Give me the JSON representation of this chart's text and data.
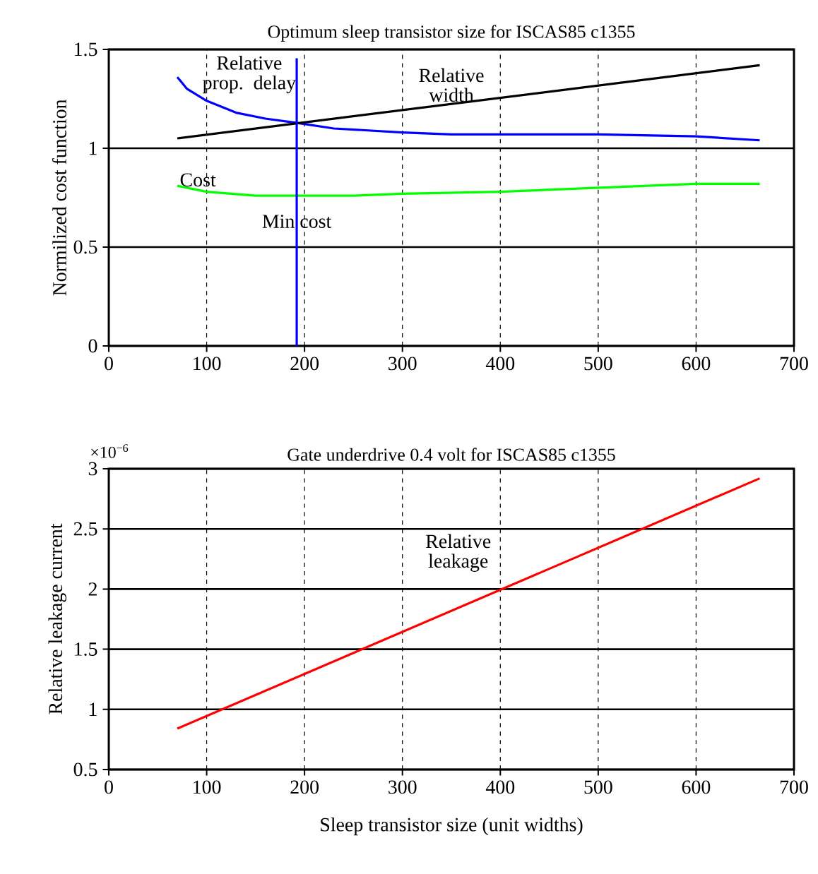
{
  "chart_data": [
    {
      "type": "line",
      "title": "Optimum sleep transistor size for ISCAS85 c1355",
      "ylabel": "Normilized cost function",
      "series": [
        {
          "name": "Relative prop. delay",
          "color": "#0000ff",
          "x": [
            70,
            80,
            100,
            130,
            160,
            190,
            230,
            300,
            350,
            400,
            500,
            600,
            665
          ],
          "values": [
            1.36,
            1.3,
            1.24,
            1.18,
            1.15,
            1.13,
            1.1,
            1.08,
            1.07,
            1.07,
            1.07,
            1.06,
            1.04
          ]
        },
        {
          "name": "Relative width",
          "color": "#000000",
          "x": [
            70,
            665
          ],
          "values": [
            1.05,
            1.42
          ]
        },
        {
          "name": "Cost",
          "color": "#00ff00",
          "x": [
            70,
            100,
            150,
            190,
            250,
            300,
            400,
            500,
            600,
            665
          ],
          "values": [
            0.81,
            0.78,
            0.76,
            0.76,
            0.76,
            0.77,
            0.78,
            0.8,
            0.82,
            0.82
          ]
        }
      ],
      "ref_lines": [
        {
          "axis": "x",
          "value": 192,
          "label": "Min cost",
          "color": "#0000ff"
        }
      ],
      "xlim": [
        0,
        700
      ],
      "xticks": [
        0,
        100,
        200,
        300,
        400,
        500,
        600,
        700
      ],
      "ylim": [
        0,
        1.5
      ],
      "yticks": [
        0,
        0.5,
        1,
        1.5
      ],
      "grid": true,
      "legend": false
    },
    {
      "type": "line",
      "title": "Gate underdrive 0.4 volt for ISCAS85 c1355",
      "xlabel": "Sleep transistor size (unit widths)",
      "ylabel": "Relative leakage current",
      "annotations": [
        "×10$^{−6}$"
      ],
      "series": [
        {
          "name": "Relative leakage",
          "color": "#ff0000",
          "x": [
            70,
            665
          ],
          "values": [
            0.84,
            2.92
          ]
        }
      ],
      "xlim": [
        0,
        700
      ],
      "xticks": [
        0,
        100,
        200,
        300,
        400,
        500,
        600,
        700
      ],
      "ylim": [
        0.5,
        3
      ],
      "yticks": [
        0.5,
        1,
        1.5,
        2,
        2.5,
        3
      ],
      "grid": true,
      "legend": false
    }
  ]
}
